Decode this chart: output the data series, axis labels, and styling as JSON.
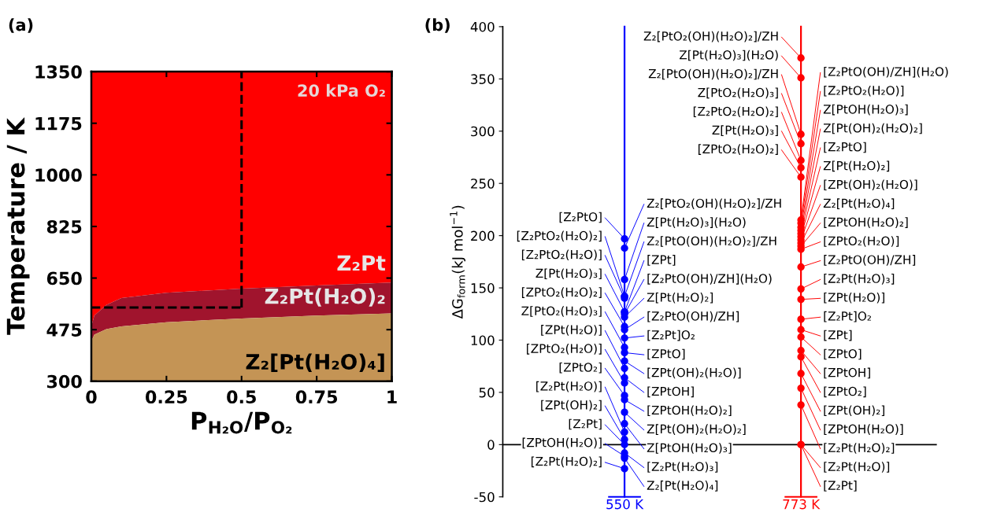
{
  "chart_data": [
    {
      "type": "area",
      "title": "(a)",
      "xlabel": "P$_{H₂O}$/P$_{O₂}$",
      "ylabel": "Temperature / K",
      "x": [
        0,
        0.01,
        0.05,
        0.1,
        0.25,
        0.5,
        0.75,
        1
      ],
      "series": [
        {
          "name": "Z₂[Pt(H₂O)₄]",
          "color": "#c49455",
          "values": [
            436,
            458,
            477,
            486,
            500,
            513,
            523,
            530
          ]
        },
        {
          "name": "Z₂Pt(H₂O)₂",
          "color": "#a0142d",
          "values": [
            486,
            523,
            559,
            582,
            600,
            614,
            625,
            635
          ]
        },
        {
          "name": "Z₂Pt",
          "color": "#ff0000",
          "values": [
            1350,
            1350,
            1350,
            1350,
            1350,
            1350,
            1350,
            1350
          ]
        }
      ],
      "xlim": [
        0,
        1
      ],
      "xticks": [
        0,
        0.25,
        0.5,
        0.75,
        1
      ],
      "ylim": [
        300,
        1350
      ],
      "yticks": [
        300,
        475,
        650,
        825,
        1000,
        1175,
        1350
      ],
      "annotations": [
        "20 kPa O₂"
      ],
      "ref_lines": [
        {
          "axis": "x",
          "value": 0.5,
          "color": "#000000",
          "line_style": "dashed"
        },
        {
          "axis": "y",
          "value": 550,
          "color": "#000000",
          "line_style": "dashed"
        }
      ]
    },
    {
      "type": "scatter",
      "title": "(b)",
      "ylabel": "ΔG$_{form}$(kJ mol$^{−1}$)",
      "marker": "circle",
      "categories": [
        "550 K",
        "773 K"
      ],
      "ylim": [
        -50,
        400
      ],
      "yticks": [
        -50,
        0,
        50,
        100,
        150,
        200,
        250,
        300,
        350,
        400
      ],
      "series": [
        {
          "color": "#0000ff",
          "x": [
            "550 K",
            "550 K",
            "550 K",
            "550 K",
            "550 K",
            "550 K",
            "550 K",
            "550 K",
            "550 K",
            "550 K",
            "550 K",
            "550 K",
            "550 K",
            "550 K"
          ],
          "values": [
            197,
            142,
            140,
            127,
            113,
            93,
            73,
            59,
            47,
            12,
            5,
            0,
            -11,
            -23
          ],
          "value_labels": [
            "[Z₂PtO]",
            "[Z₂PtO₂(H₂O)₂]",
            "[Z₂PtO₂(H₂O)]",
            "Z[Pt(H₂O)₃]",
            "[ZPtO₂(H₂O)₂]",
            "Z[PtO₂(H₂O)₃]",
            "[ZPt(H₂O)]",
            "[ZPtO₂(H₂O)]",
            "[ZPtO₂]",
            "[Z₂Pt(H₂O)]",
            "[ZPt(OH)₂]",
            "[Z₂Pt]",
            "[ZPtOH(H₂O)]",
            "[Z₂Pt(H₂O)₂]"
          ]
        },
        {
          "color": "#0000ff",
          "x": [
            "550 K",
            "550 K",
            "550 K",
            "550 K",
            "550 K",
            "550 K",
            "550 K",
            "550 K",
            "550 K",
            "550 K",
            "550 K",
            "550 K",
            "550 K",
            "550 K",
            "550 K",
            "550 K"
          ],
          "values": [
            188,
            158,
            142,
            127,
            125,
            122,
            110,
            102,
            88,
            80,
            64,
            43,
            31,
            20,
            -8,
            -13
          ],
          "value_labels": [
            "Z₂[PtO₂(OH)(H₂O)₂]/ZH",
            "Z[Pt(H₂O)₃](H₂O)",
            "Z₂[PtO(OH)(H₂O)₂]/ZH",
            "[ZPt]",
            "[Z₂PtO(OH)/ZH](H₂O)",
            "Z[Pt(H₂O)₂]",
            "[Z₂PtO(OH)/ZH]",
            "[Z₂Pt]O₂",
            "[ZPtO]",
            "[ZPt(OH)₂(H₂O)]",
            "[ZPtOH]",
            "[ZPtOH(H₂O)₂]",
            "Z[Pt(OH)₂(H₂O)₂]",
            "Z[PtOH(H₂O)₃]",
            "[Z₂Pt(H₂O)₃]",
            "Z₂[Pt(H₂O)₄]"
          ]
        },
        {
          "color": "#ff0000",
          "x": [
            "773 K",
            "773 K",
            "773 K",
            "773 K",
            "773 K",
            "773 K",
            "773 K"
          ],
          "values": [
            370,
            351,
            297,
            288,
            272,
            265,
            256
          ],
          "value_labels": [
            "Z₂[PtO₂(OH)(H₂O)₂]/ZH",
            "Z[Pt(H₂O)₃](H₂O)",
            "Z₂[PtO(OH)(H₂O)₂]/ZH",
            "Z[PtO₂(H₂O)₃]",
            "[Z₂PtO₂(H₂O)₂]",
            "Z[Pt(H₂O)₃]",
            "[ZPtO₂(H₂O)₂]"
          ]
        },
        {
          "color": "#ff0000",
          "x": [
            "773 K",
            "773 K",
            "773 K",
            "773 K",
            "773 K",
            "773 K",
            "773 K",
            "773 K",
            "773 K",
            "773 K",
            "773 K",
            "773 K",
            "773 K",
            "773 K",
            "773 K",
            "773 K",
            "773 K",
            "773 K",
            "773 K",
            "773 K",
            "773 K",
            "773 K",
            "773 K"
          ],
          "values": [
            215,
            212,
            208,
            205,
            202,
            199,
            196,
            193,
            190,
            187,
            170,
            149,
            139,
            120,
            110,
            103,
            90,
            84,
            68,
            54,
            38,
            0,
            0
          ],
          "value_labels": [
            "[Z₂PtO(OH)/ZH](H₂O)",
            "[Z₂PtO₂(H₂O)]",
            "Z[PtOH(H₂O)₃]",
            "Z[Pt(OH)₂(H₂O)₂]",
            "[Z₂PtO]",
            "Z[Pt(H₂O)₂]",
            "[ZPt(OH)₂(H₂O)]",
            "Z₂[Pt(H₂O)₄]",
            "[ZPtOH(H₂O)₂]",
            "[ZPtO₂(H₂O)]",
            "[Z₂PtO(OH)/ZH]",
            "[Z₂Pt(H₂O)₃]",
            "[ZPt(H₂O)]",
            "[Z₂Pt]O₂",
            "[ZPt]",
            "[ZPtO]",
            "[ZPtOH]",
            "[ZPtO₂]",
            "[ZPt(OH)₂]",
            "[ZPtOH(H₂O)]",
            "[Z₂Pt(H₂O)₂]",
            "[Z₂Pt(H₂O)]",
            "[Z₂Pt]"
          ]
        }
      ],
      "ref_lines": [
        {
          "axis": "x",
          "value": "550 K",
          "color": "#0000ff"
        },
        {
          "axis": "x",
          "value": "773 K",
          "color": "#ff0000"
        },
        {
          "axis": "y",
          "value": 0,
          "color": "#000000"
        }
      ]
    }
  ]
}
